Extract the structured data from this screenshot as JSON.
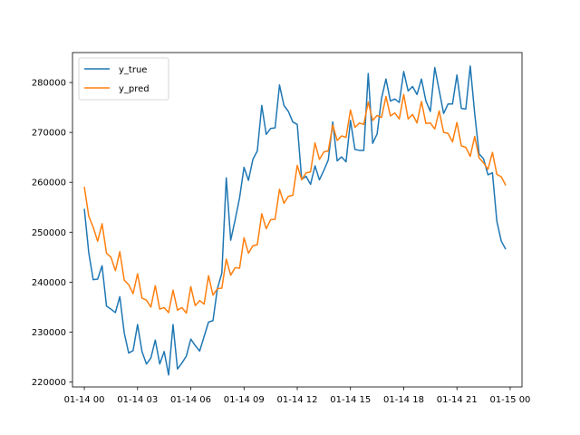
{
  "chart_data": {
    "type": "line",
    "title": "",
    "xlabel": "",
    "ylabel": "",
    "xlim": [
      "2015-01-13 23:20",
      "2015-01-15 00:40"
    ],
    "ylim": [
      219000,
      286000
    ],
    "grid": false,
    "legend_position": "top-left",
    "x_ticks": [
      {
        "value": "2015-01-14 00:00",
        "label": "01-14 00"
      },
      {
        "value": "2015-01-14 03:00",
        "label": "01-14 03"
      },
      {
        "value": "2015-01-14 06:00",
        "label": "01-14 06"
      },
      {
        "value": "2015-01-14 09:00",
        "label": "01-14 09"
      },
      {
        "value": "2015-01-14 12:00",
        "label": "01-14 12"
      },
      {
        "value": "2015-01-14 15:00",
        "label": "01-14 15"
      },
      {
        "value": "2015-01-14 18:00",
        "label": "01-14 18"
      },
      {
        "value": "2015-01-14 21:00",
        "label": "01-14 21"
      },
      {
        "value": "2015-01-15 00:00",
        "label": "01-15 00"
      }
    ],
    "y_ticks": [
      {
        "value": 220000,
        "label": "220000"
      },
      {
        "value": 230000,
        "label": "230000"
      },
      {
        "value": 240000,
        "label": "240000"
      },
      {
        "value": 250000,
        "label": "250000"
      },
      {
        "value": 260000,
        "label": "260000"
      },
      {
        "value": 270000,
        "label": "270000"
      },
      {
        "value": 280000,
        "label": "280000"
      }
    ],
    "x_start": "2015-01-14 00:00",
    "x_step": "15 min",
    "series": [
      {
        "name": "y_true",
        "color": "#1f77b4",
        "values": [
          254700,
          245900,
          240500,
          240600,
          243300,
          235200,
          234600,
          233900,
          237100,
          229800,
          225800,
          226300,
          231500,
          226100,
          223600,
          224800,
          228400,
          223600,
          226100,
          221400,
          231500,
          222600,
          223800,
          225200,
          228600,
          227300,
          226200,
          229100,
          232000,
          232300,
          238700,
          241800,
          260900,
          248400,
          252500,
          256900,
          263000,
          260400,
          264600,
          266300,
          275400,
          269600,
          270800,
          270900,
          279500,
          275400,
          274200,
          272100,
          271600,
          260600,
          261200,
          259600,
          263300,
          260500,
          262400,
          264500,
          272100,
          264300,
          265100,
          264100,
          272400,
          266600,
          266400,
          266400,
          281800,
          267800,
          269700,
          276800,
          280700,
          276300,
          276700,
          276000,
          282200,
          278300,
          279200,
          277600,
          280700,
          276300,
          274200,
          283000,
          278400,
          273800,
          275700,
          275700,
          281500,
          274800,
          274700,
          283300,
          273800,
          265700,
          264700,
          261500,
          261900,
          252200,
          248200,
          246600
        ]
      },
      {
        "name": "y_pred",
        "color": "#ff7f0e",
        "values": [
          259100,
          253200,
          251000,
          248200,
          251700,
          245800,
          245000,
          242300,
          246100,
          240400,
          239500,
          237700,
          241700,
          236800,
          236400,
          235000,
          239300,
          234600,
          234900,
          233900,
          238400,
          234400,
          234900,
          233800,
          239100,
          235300,
          236300,
          235600,
          241300,
          237400,
          238700,
          238800,
          244600,
          241400,
          242900,
          242800,
          248900,
          245800,
          247300,
          247500,
          253700,
          250700,
          252500,
          252600,
          258600,
          255800,
          257200,
          257400,
          263400,
          260500,
          261900,
          262100,
          267900,
          264600,
          266100,
          266300,
          271500,
          268400,
          269300,
          269000,
          274500,
          271000,
          271900,
          271600,
          276100,
          272400,
          273400,
          273000,
          277200,
          273300,
          273900,
          272700,
          277600,
          272700,
          273600,
          271900,
          276200,
          271800,
          271900,
          270700,
          274300,
          270000,
          269800,
          268100,
          272000,
          267300,
          267000,
          265200,
          269200,
          264900,
          263900,
          262600,
          266000,
          261600,
          261100,
          259400
        ]
      }
    ]
  }
}
